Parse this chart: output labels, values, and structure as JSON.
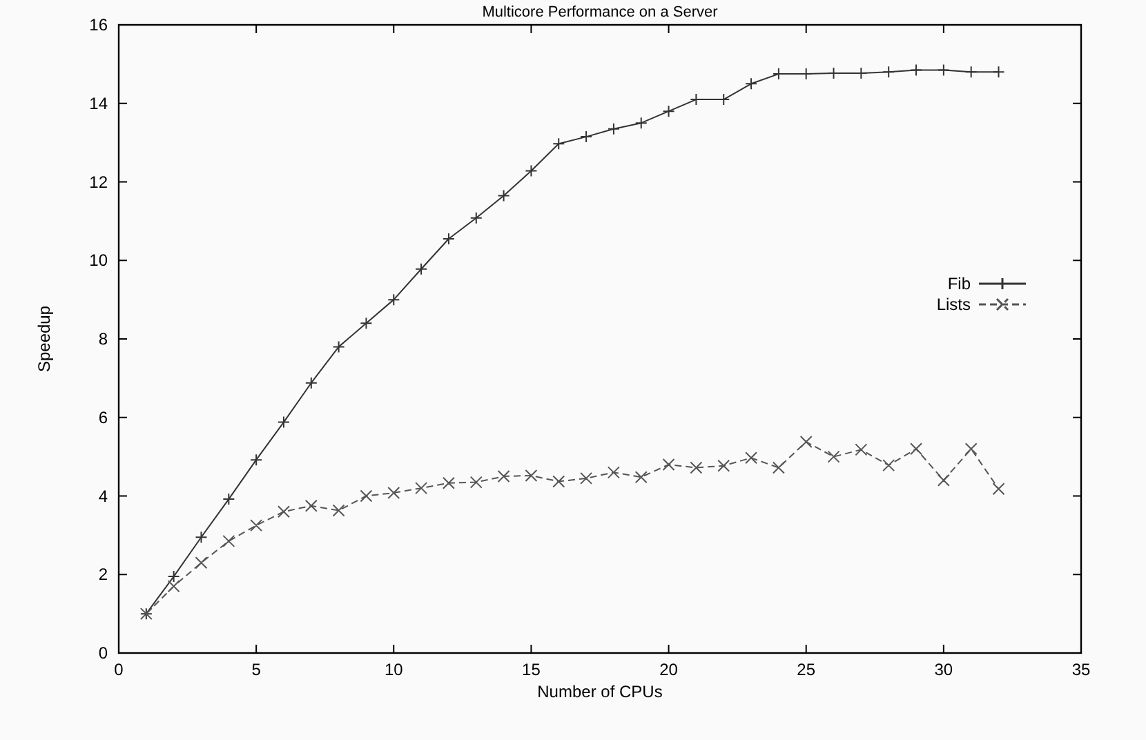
{
  "chart_data": {
    "type": "line",
    "title": "Multicore Performance on a Server",
    "xlabel": "Number of CPUs",
    "ylabel": "Speedup",
    "xlim": [
      0,
      35
    ],
    "xticks": [
      0,
      5,
      10,
      15,
      20,
      25,
      30,
      35
    ],
    "ylim": [
      0,
      16
    ],
    "yticks": [
      0,
      2,
      4,
      6,
      8,
      10,
      12,
      14,
      16
    ],
    "x": [
      1,
      2,
      3,
      4,
      5,
      6,
      7,
      8,
      9,
      10,
      11,
      12,
      13,
      14,
      15,
      16,
      17,
      18,
      19,
      20,
      21,
      22,
      23,
      24,
      25,
      26,
      27,
      28,
      29,
      30,
      31,
      32
    ],
    "series": [
      {
        "name": "Fib",
        "color": "#333333",
        "marker": "cross",
        "line_style": "solid",
        "values": [
          1,
          1.95,
          2.95,
          3.92,
          4.92,
          5.88,
          6.88,
          7.8,
          8.4,
          9.0,
          9.78,
          10.55,
          11.08,
          11.65,
          12.28,
          12.97,
          13.15,
          13.35,
          13.5,
          13.8,
          14.1,
          14.1,
          14.5,
          14.75,
          14.75,
          14.77,
          14.77,
          14.8,
          14.85,
          14.85,
          14.8,
          14.8
        ]
      },
      {
        "name": "Lists",
        "color": "#555555",
        "marker": "cross",
        "line_style": "dashed",
        "values": [
          1,
          1.7,
          2.3,
          2.85,
          3.25,
          3.6,
          3.75,
          3.63,
          4.0,
          4.08,
          4.2,
          4.33,
          4.35,
          4.5,
          4.52,
          4.37,
          4.45,
          4.6,
          4.48,
          4.8,
          4.72,
          4.77,
          4.97,
          4.72,
          5.38,
          5.0,
          5.18,
          4.78,
          5.2,
          4.4,
          5.2,
          4.18
        ]
      }
    ],
    "legend": "right",
    "grid": false
  }
}
